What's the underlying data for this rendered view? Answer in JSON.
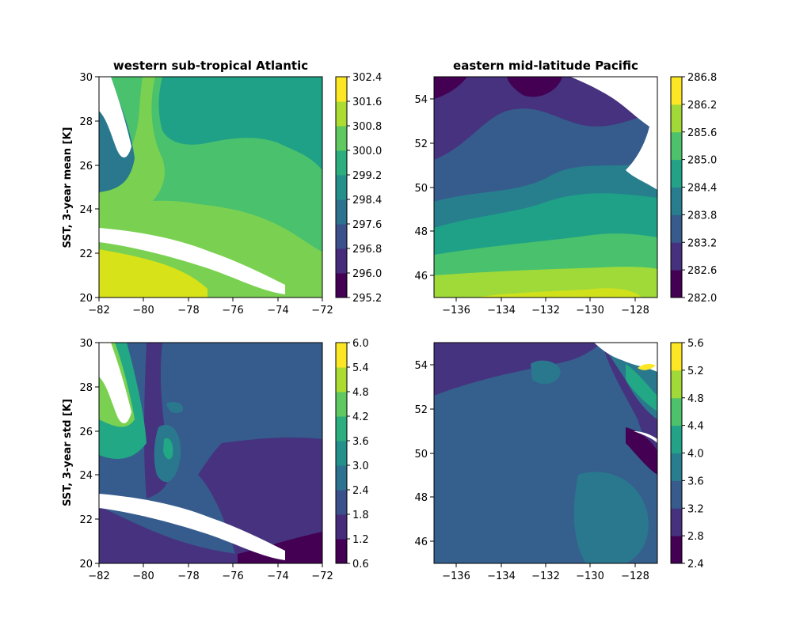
{
  "chart_data": [
    {
      "type": "heatmap",
      "subtype": "filled-contour-map",
      "title": "western sub-tropical Atlantic",
      "ylabel": "SST, 3-year mean [K]",
      "xlabel": "",
      "xlim": [
        -82,
        -72
      ],
      "ylim": [
        20,
        30
      ],
      "x_ticks": [
        "−82",
        "−80",
        "−78",
        "−76",
        "−74",
        "−72"
      ],
      "y_ticks": [
        "20",
        "22",
        "24",
        "26",
        "28",
        "30"
      ],
      "colorbar_ticks": [
        "295.2",
        "296.0",
        "296.8",
        "297.6",
        "298.4",
        "299.2",
        "300.0",
        "300.8",
        "301.6",
        "302.4"
      ],
      "colormap": "viridis",
      "land_color": "#ffffff"
    },
    {
      "type": "heatmap",
      "subtype": "filled-contour-map",
      "title": "eastern mid-latitude Pacific",
      "ylabel": "",
      "xlabel": "",
      "xlim": [
        -137,
        -127
      ],
      "ylim": [
        45,
        55
      ],
      "x_ticks": [
        "−136",
        "−134",
        "−132",
        "−130",
        "−128"
      ],
      "y_ticks": [
        "46",
        "48",
        "50",
        "52",
        "54"
      ],
      "colorbar_ticks": [
        "282.0",
        "282.6",
        "283.2",
        "283.8",
        "284.4",
        "285.0",
        "285.6",
        "286.2",
        "286.8"
      ],
      "colormap": "viridis",
      "land_color": "#ffffff"
    },
    {
      "type": "heatmap",
      "subtype": "filled-contour-map",
      "title": "",
      "ylabel": "SST, 3-year std [K]",
      "xlabel": "",
      "xlim": [
        -82,
        -72
      ],
      "ylim": [
        20,
        30
      ],
      "x_ticks": [
        "−82",
        "−80",
        "−78",
        "−76",
        "−74",
        "−72"
      ],
      "y_ticks": [
        "20",
        "22",
        "24",
        "26",
        "28",
        "30"
      ],
      "colorbar_ticks": [
        "0.6",
        "1.2",
        "1.8",
        "2.4",
        "3.0",
        "3.6",
        "4.2",
        "4.8",
        "5.4",
        "6.0"
      ],
      "colormap": "viridis",
      "land_color": "#ffffff"
    },
    {
      "type": "heatmap",
      "subtype": "filled-contour-map",
      "title": "",
      "ylabel": "",
      "xlabel": "",
      "xlim": [
        -137,
        -127
      ],
      "ylim": [
        45,
        55
      ],
      "x_ticks": [
        "−136",
        "−134",
        "−132",
        "−130",
        "−128"
      ],
      "y_ticks": [
        "46",
        "48",
        "50",
        "52",
        "54"
      ],
      "colorbar_ticks": [
        "2.4",
        "2.8",
        "3.2",
        "3.6",
        "4.0",
        "4.4",
        "4.8",
        "5.2",
        "5.6"
      ],
      "colormap": "viridis",
      "land_color": "#ffffff"
    }
  ]
}
